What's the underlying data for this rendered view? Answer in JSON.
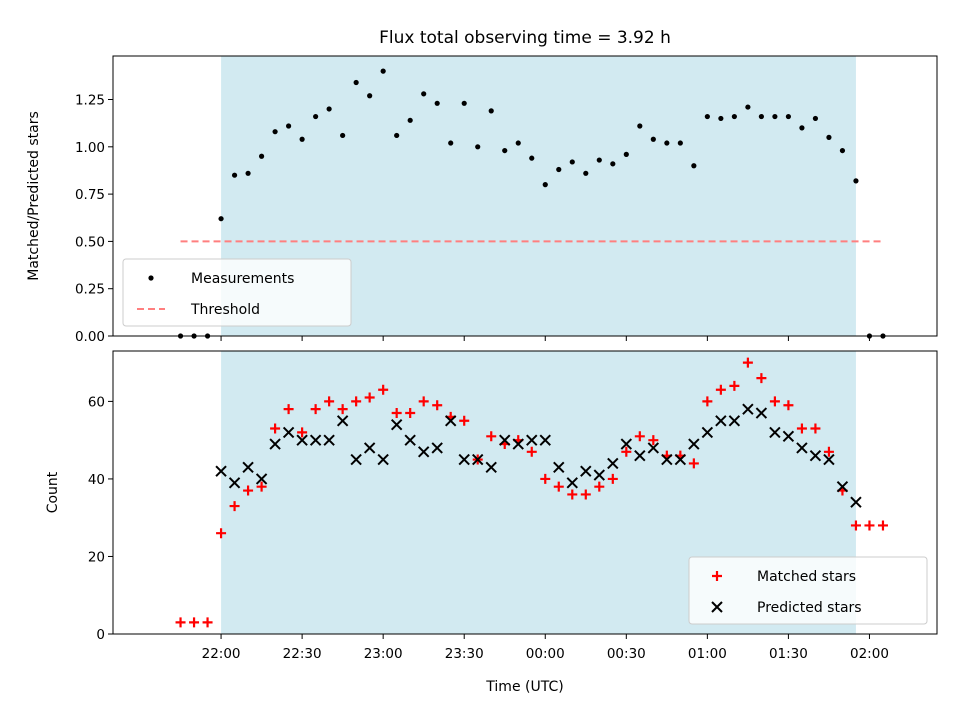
{
  "title": "Flux total observing time = 3.92 h",
  "colors": {
    "span": "#add8e6",
    "measurement": "#000000",
    "threshold": "#ff7f7f",
    "matched": "#ff0000",
    "predicted": "#000000",
    "legend_bg": "#ffffff"
  },
  "chart_data": [
    {
      "type": "scatter",
      "ylabel": "Matched/Predicted stars",
      "ylim": [
        0,
        1.48
      ],
      "yticks": [
        0.0,
        0.25,
        0.5,
        0.75,
        1.0,
        1.25
      ],
      "ytick_labels": [
        "0.00",
        "0.25",
        "0.50",
        "0.75",
        "1.00",
        "1.25"
      ],
      "x_axis": "time in minutes relative to 22:00 UTC (tick labels below)",
      "xlim": [
        -40,
        265
      ],
      "xticks": [
        0,
        30,
        60,
        90,
        120,
        150,
        180,
        210,
        240
      ],
      "shaded_span": [
        0,
        235
      ],
      "legend_position": "lower left",
      "series": [
        {
          "name": "Measurements",
          "marker": "dot",
          "x": [
            -15,
            -10,
            -5,
            0,
            5,
            10,
            15,
            20,
            25,
            30,
            35,
            40,
            45,
            50,
            55,
            60,
            65,
            70,
            75,
            80,
            85,
            90,
            95,
            100,
            105,
            110,
            115,
            120,
            125,
            130,
            135,
            140,
            145,
            150,
            155,
            160,
            165,
            170,
            175,
            180,
            185,
            190,
            195,
            200,
            205,
            210,
            215,
            220,
            225,
            230,
            235,
            240,
            245
          ],
          "y": [
            0,
            0,
            0,
            0.62,
            0.85,
            0.86,
            0.95,
            1.08,
            1.11,
            1.04,
            1.16,
            1.2,
            1.06,
            1.34,
            1.27,
            1.4,
            1.06,
            1.14,
            1.28,
            1.23,
            1.02,
            1.23,
            1.0,
            1.19,
            0.98,
            1.02,
            0.94,
            0.8,
            0.88,
            0.92,
            0.86,
            0.93,
            0.91,
            0.96,
            1.11,
            1.04,
            1.02,
            1.02,
            0.9,
            1.16,
            1.15,
            1.16,
            1.21,
            1.16,
            1.16,
            1.16,
            1.1,
            1.15,
            1.05,
            0.98,
            0.82,
            0,
            0
          ]
        },
        {
          "name": "Threshold",
          "marker": "dashed-line",
          "x": [
            -15,
            245
          ],
          "y": [
            0.5,
            0.5
          ]
        }
      ]
    },
    {
      "type": "scatter",
      "ylabel": "Count",
      "xlabel": "Time (UTC)",
      "ylim": [
        0,
        73
      ],
      "yticks": [
        0,
        20,
        40,
        60
      ],
      "ytick_labels": [
        "0",
        "20",
        "40",
        "60"
      ],
      "xlim": [
        -40,
        265
      ],
      "xticks": [
        0,
        30,
        60,
        90,
        120,
        150,
        180,
        210,
        240
      ],
      "xtick_labels": [
        "22:00",
        "22:30",
        "23:00",
        "23:30",
        "00:00",
        "00:30",
        "01:00",
        "01:30",
        "02:00"
      ],
      "shaded_span": [
        0,
        235
      ],
      "legend_position": "lower right",
      "series": [
        {
          "name": "Matched stars",
          "marker": "plus",
          "x": [
            -15,
            -10,
            -5,
            0,
            5,
            10,
            15,
            20,
            25,
            30,
            35,
            40,
            45,
            50,
            55,
            60,
            65,
            70,
            75,
            80,
            85,
            90,
            95,
            100,
            105,
            110,
            115,
            120,
            125,
            130,
            135,
            140,
            145,
            150,
            155,
            160,
            165,
            170,
            175,
            180,
            185,
            190,
            195,
            200,
            205,
            210,
            215,
            220,
            225,
            230,
            235,
            240,
            245
          ],
          "y": [
            3,
            3,
            3,
            26,
            33,
            37,
            38,
            53,
            58,
            52,
            58,
            60,
            58,
            60,
            61,
            63,
            57,
            57,
            60,
            59,
            56,
            55,
            45,
            51,
            49,
            50,
            47,
            40,
            38,
            36,
            36,
            38,
            40,
            47,
            51,
            50,
            46,
            46,
            44,
            60,
            63,
            64,
            70,
            66,
            60,
            59,
            53,
            53,
            47,
            37,
            28,
            28,
            28
          ]
        },
        {
          "name": "Predicted stars",
          "marker": "x",
          "x": [
            0,
            5,
            10,
            15,
            20,
            25,
            30,
            35,
            40,
            45,
            50,
            55,
            60,
            65,
            70,
            75,
            80,
            85,
            90,
            95,
            100,
            105,
            110,
            115,
            120,
            125,
            130,
            135,
            140,
            145,
            150,
            155,
            160,
            165,
            170,
            175,
            180,
            185,
            190,
            195,
            200,
            205,
            210,
            215,
            220,
            225,
            230,
            235
          ],
          "y": [
            42,
            39,
            43,
            40,
            49,
            52,
            50,
            50,
            50,
            55,
            45,
            48,
            45,
            54,
            50,
            47,
            48,
            55,
            45,
            45,
            43,
            50,
            49,
            50,
            50,
            43,
            39,
            42,
            41,
            44,
            49,
            46,
            48,
            45,
            45,
            49,
            52,
            55,
            55,
            58,
            57,
            52,
            51,
            48,
            46,
            45,
            38,
            34
          ]
        }
      ]
    }
  ]
}
